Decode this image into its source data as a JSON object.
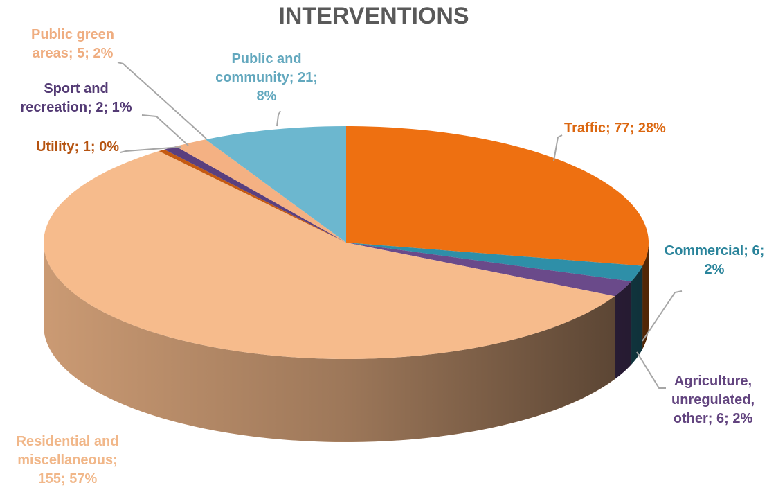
{
  "chart_data": {
    "type": "pie3d",
    "title": "INTERVENTIONS",
    "values": [
      77,
      6,
      6,
      155,
      1,
      2,
      5,
      21
    ],
    "value_labels": [
      "Traffic; 77; 28%",
      "Commercial; 6; 2%",
      "Agriculture, unregulated, other; 6; 2%",
      "Residential and miscellaneous; 155; 57%",
      "Utility; 1; 0%",
      "Sport and recreation; 2; 1%",
      "Public green areas; 5; 2%",
      "Public and community; 21; 8%"
    ],
    "colors": [
      "#ee7011",
      "#2e8fa8",
      "#6a4a8a",
      "#f6bb8c",
      "#c55a11",
      "#5a3f7e",
      "#f4b183",
      "#6cb7cf"
    ]
  }
}
